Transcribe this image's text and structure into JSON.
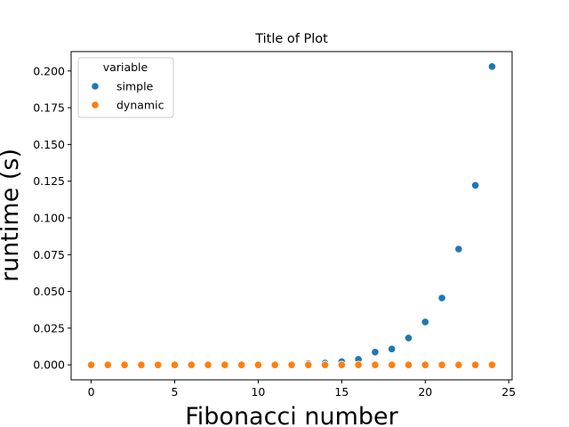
{
  "chart_data": {
    "type": "scatter",
    "title": "Title of Plot",
    "xlabel": "Fibonacci number",
    "ylabel": "runtime (s)",
    "xlim": [
      -1.2,
      25.2
    ],
    "ylim": [
      -0.0102,
      0.2132
    ],
    "xticks": [
      0,
      5,
      10,
      15,
      20,
      25
    ],
    "yticks": [
      0.0,
      0.025,
      0.05,
      0.075,
      0.1,
      0.125,
      0.15,
      0.175,
      0.2
    ],
    "ytick_labels": [
      "0.000",
      "0.025",
      "0.050",
      "0.075",
      "0.100",
      "0.125",
      "0.150",
      "0.175",
      "0.200"
    ],
    "grid": false,
    "legend": {
      "title": "variable",
      "placement": "top-left"
    },
    "series": [
      {
        "name": "simple",
        "color": "#1f77b4",
        "x": [
          0,
          1,
          2,
          3,
          4,
          5,
          6,
          7,
          8,
          9,
          10,
          11,
          12,
          13,
          14,
          15,
          16,
          17,
          18,
          19,
          20,
          21,
          22,
          23,
          24
        ],
        "y": [
          0.0,
          0.0,
          0.0,
          0.0,
          0.0,
          0.0,
          0.0,
          0.0,
          0.0,
          0.0,
          0.0,
          0.0,
          0.0004,
          0.0008,
          0.0013,
          0.0022,
          0.0038,
          0.0087,
          0.0108,
          0.0183,
          0.0292,
          0.0455,
          0.0788,
          0.1222,
          0.203
        ]
      },
      {
        "name": "dynamic",
        "color": "#ff7f0e",
        "x": [
          0,
          1,
          2,
          3,
          4,
          5,
          6,
          7,
          8,
          9,
          10,
          11,
          12,
          13,
          14,
          15,
          16,
          17,
          18,
          19,
          20,
          21,
          22,
          23,
          24
        ],
        "y": [
          0.0,
          0.0,
          0.0,
          0.0,
          0.0,
          0.0,
          0.0,
          0.0,
          0.0,
          0.0,
          0.0,
          0.0,
          0.0,
          0.0,
          0.0,
          0.0,
          0.0,
          0.0,
          0.0,
          0.0,
          0.0,
          0.0,
          0.0,
          0.0,
          0.0
        ]
      }
    ]
  }
}
